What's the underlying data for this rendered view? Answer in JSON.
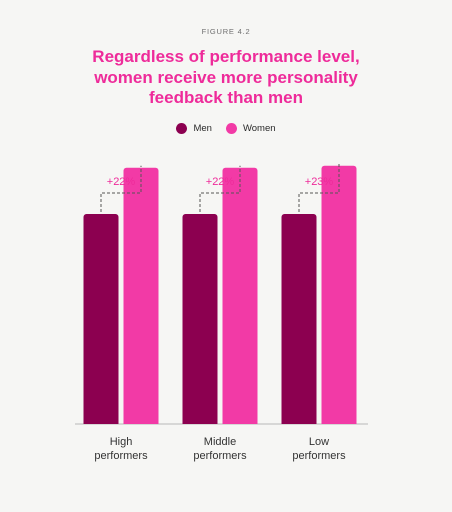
{
  "figure_label": "FIGURE 4.2",
  "title_lines": [
    "Regardless of performance level,",
    "women receive more personality",
    "feedback than men"
  ],
  "colors": {
    "men": "#8c0050",
    "women": "#f23aa6",
    "annotation": "#ee2b9a",
    "axis": "#b8b8b8",
    "bracket": "#555555"
  },
  "chart_data": {
    "type": "bar",
    "title": "Regardless of performance level, women receive more personality feedback than men",
    "categories": [
      [
        "High",
        "performers"
      ],
      [
        "Middle",
        "performers"
      ],
      [
        "Low",
        "performers"
      ]
    ],
    "series": [
      {
        "name": "Men",
        "values": [
          100,
          100,
          100
        ]
      },
      {
        "name": "Women",
        "values": [
          122,
          122,
          123
        ]
      }
    ],
    "annotations": [
      "+22%",
      "+22%",
      "+23%"
    ],
    "ylim": [
      0,
      140
    ],
    "legend": "top-center",
    "grid": false
  }
}
